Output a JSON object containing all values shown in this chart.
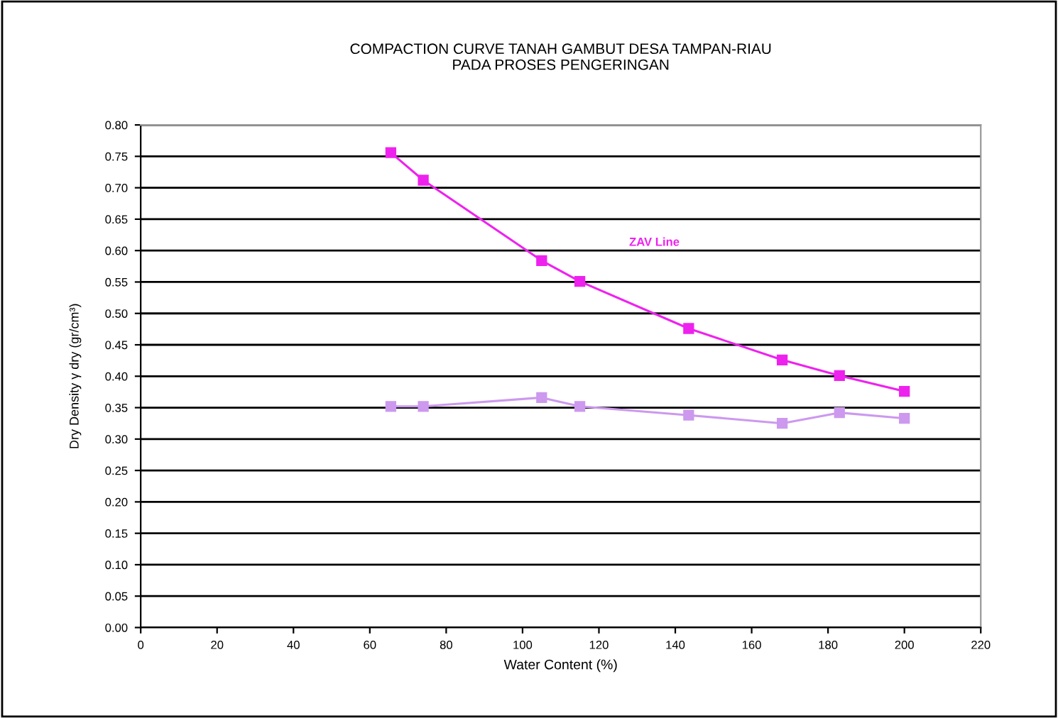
{
  "chart_data": {
    "type": "line",
    "title": "COMPACTION CURVE TANAH GAMBUT DESA TAMPAN-RIAU\nPADA PROSES PENGERINGAN",
    "xlabel": "Water Content (%)",
    "ylabel": "Dry Density γ dry (gr/cm³)",
    "x": [
      65.5,
      74,
      105,
      115,
      143.5,
      168,
      183,
      200
    ],
    "series": [
      {
        "name": "ZAV Line",
        "color": "#ee22ee",
        "values": [
          0.756,
          0.712,
          0.584,
          0.551,
          0.476,
          0.426,
          0.401,
          0.376
        ]
      },
      {
        "color": "#cc99ee",
        "values": [
          0.352,
          0.352,
          0.366,
          0.352,
          0.338,
          0.325,
          0.342,
          0.333
        ]
      }
    ],
    "xlim": [
      0,
      220
    ],
    "xticks": [
      0,
      20,
      40,
      60,
      80,
      100,
      120,
      140,
      160,
      180,
      200,
      220
    ],
    "ylim": [
      0,
      0.8
    ],
    "yticks": [
      {
        "value": 0,
        "label": "0.00"
      },
      {
        "value": 0.05,
        "label": "0.05"
      },
      {
        "value": 0.1,
        "label": "0.10"
      },
      {
        "value": 0.15,
        "label": "0.15"
      },
      {
        "value": 0.2,
        "label": "0.20"
      },
      {
        "value": 0.25,
        "label": "0.25"
      },
      {
        "value": 0.3,
        "label": "0.30"
      },
      {
        "value": 0.35,
        "label": "0.35"
      },
      {
        "value": 0.4,
        "label": "0.40"
      },
      {
        "value": 0.45,
        "label": "0.45"
      },
      {
        "value": 0.5,
        "label": "0.50"
      },
      {
        "value": 0.55,
        "label": "0.55"
      },
      {
        "value": 0.6,
        "label": "0.60"
      },
      {
        "value": 0.65,
        "label": "0.65"
      },
      {
        "value": 0.7,
        "label": "0.70"
      },
      {
        "value": 0.75,
        "label": "0.75"
      },
      {
        "value": 0.8,
        "label": "0.80"
      }
    ],
    "grid": "y",
    "marker": "square",
    "line_style": "solid"
  }
}
